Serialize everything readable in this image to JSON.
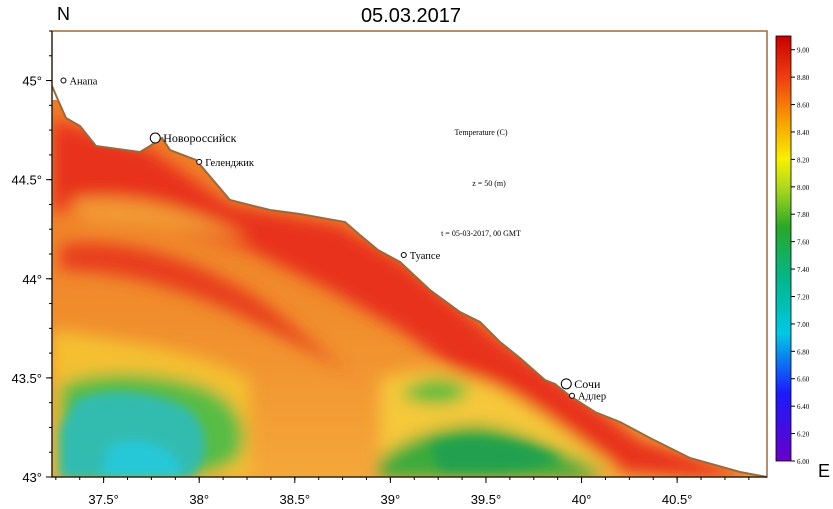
{
  "title": "05.03.2017",
  "north_label": "N",
  "east_label": "E",
  "annotations": {
    "variable": "Temperature (C)",
    "depth": "z = 50 (m)",
    "time": "t = 05-03-2017,  00 GMT"
  },
  "axes": {
    "lon_range": [
      37.23,
      40.97
    ],
    "lat_range": [
      43.0,
      45.25
    ],
    "x_ticks": [
      37.5,
      38.0,
      38.5,
      39.0,
      39.5,
      40.0,
      40.5
    ],
    "x_tick_labels": [
      "37.5°",
      "38°",
      "38.5°",
      "39°",
      "39.5°",
      "40°",
      "40.5°"
    ],
    "y_ticks": [
      43.0,
      43.5,
      44.0,
      44.5,
      45.0
    ],
    "y_tick_labels": [
      "43°",
      "43.5°",
      "44°",
      "44.5°",
      "45°"
    ]
  },
  "cities": [
    {
      "name": "Анапа",
      "lon": 37.29,
      "lat": 45.0,
      "marker": "small"
    },
    {
      "name": "Новороссийск",
      "lon": 37.77,
      "lat": 44.71,
      "marker": "large"
    },
    {
      "name": "Геленджик",
      "lon": 38.0,
      "lat": 44.59,
      "marker": "small"
    },
    {
      "name": "Туапсе",
      "lon": 39.07,
      "lat": 44.12,
      "marker": "small"
    },
    {
      "name": "Сочи",
      "lon": 39.92,
      "lat": 43.47,
      "marker": "large"
    },
    {
      "name": "Адлер",
      "lon": 39.95,
      "lat": 43.41,
      "marker": "small"
    }
  ],
  "colorbar": {
    "min": 6.0,
    "max": 9.1,
    "tick_labels": [
      "6.00",
      "6.20",
      "6.40",
      "6.60",
      "6.80",
      "7.00",
      "7.20",
      "7.40",
      "7.60",
      "7.80",
      "8.00",
      "8.20",
      "8.40",
      "8.60",
      "8.80",
      "9.00"
    ]
  },
  "colors": {
    "coast": "#9a6a3c",
    "field_warm": "#e8281c",
    "field_mid": "#f08a2c",
    "field_cool": "#3cb83c",
    "field_cold": "#2ac0c8"
  }
}
